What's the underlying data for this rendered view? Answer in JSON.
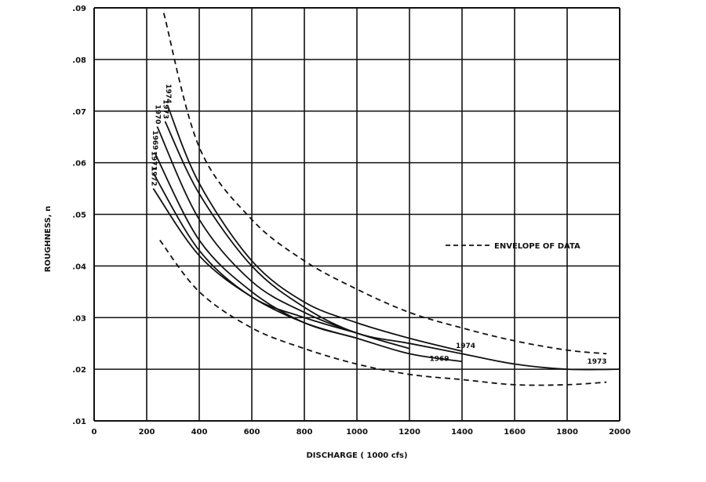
{
  "chart_data": {
    "type": "line",
    "title": "",
    "xlabel": "DISCHARGE ( 1000 cfs)",
    "ylabel": "ROUGHNESS, n",
    "xlim": [
      0,
      2000
    ],
    "ylim": [
      0.01,
      0.09
    ],
    "grid": true,
    "x_ticks": [
      0,
      200,
      400,
      600,
      800,
      1000,
      1200,
      1400,
      1600,
      1800,
      2000
    ],
    "x_tick_labels": [
      "0",
      "200",
      "400",
      "600",
      "800",
      "1000",
      "1200",
      "1400",
      "1600",
      "1800",
      "2000"
    ],
    "y_ticks": [
      0.01,
      0.02,
      0.03,
      0.04,
      0.05,
      0.06,
      0.07,
      0.08,
      0.09
    ],
    "y_tick_labels": [
      ".01",
      ".02",
      ".03",
      ".04",
      ".05",
      ".06",
      ".07",
      ".08",
      ".09"
    ],
    "legend": {
      "position": "right",
      "entries": [
        {
          "label": "ENVELOPE OF DATA",
          "style": "dashed"
        }
      ]
    },
    "series": [
      {
        "name": "1974",
        "style": "solid",
        "points": [
          [
            280,
            0.071
          ],
          [
            400,
            0.056
          ],
          [
            600,
            0.041
          ],
          [
            800,
            0.033
          ],
          [
            1000,
            0.029
          ],
          [
            1200,
            0.026
          ],
          [
            1400,
            0.0235
          ]
        ]
      },
      {
        "name": "1973",
        "style": "solid",
        "points": [
          [
            270,
            0.068
          ],
          [
            400,
            0.054
          ],
          [
            600,
            0.04
          ],
          [
            800,
            0.032
          ],
          [
            1000,
            0.027
          ],
          [
            1200,
            0.025
          ],
          [
            1400,
            0.023
          ],
          [
            1600,
            0.021
          ],
          [
            1800,
            0.02
          ],
          [
            2000,
            0.02
          ]
        ]
      },
      {
        "name": "1970",
        "style": "solid",
        "points": [
          [
            240,
            0.067
          ],
          [
            400,
            0.049
          ],
          [
            600,
            0.037
          ],
          [
            800,
            0.031
          ],
          [
            1000,
            0.027
          ],
          [
            1200,
            0.024
          ]
        ]
      },
      {
        "name": "1969",
        "style": "solid",
        "points": [
          [
            230,
            0.062
          ],
          [
            400,
            0.045
          ],
          [
            600,
            0.035
          ],
          [
            800,
            0.029
          ],
          [
            1000,
            0.026
          ],
          [
            1200,
            0.023
          ],
          [
            1400,
            0.0215
          ]
        ]
      },
      {
        "name": "1971",
        "style": "solid",
        "points": [
          [
            225,
            0.058
          ],
          [
            400,
            0.043
          ],
          [
            600,
            0.034
          ],
          [
            800,
            0.03
          ],
          [
            1000,
            0.027
          ]
        ]
      },
      {
        "name": "1972",
        "style": "solid",
        "points": [
          [
            225,
            0.055
          ],
          [
            400,
            0.042
          ],
          [
            600,
            0.034
          ],
          [
            800,
            0.029
          ],
          [
            1000,
            0.026
          ]
        ]
      },
      {
        "name": "Envelope upper",
        "style": "dashed",
        "points": [
          [
            265,
            0.089
          ],
          [
            400,
            0.063
          ],
          [
            600,
            0.049
          ],
          [
            800,
            0.041
          ],
          [
            1000,
            0.0355
          ],
          [
            1200,
            0.031
          ],
          [
            1400,
            0.028
          ],
          [
            1600,
            0.0255
          ],
          [
            1800,
            0.0237
          ],
          [
            1950,
            0.023
          ]
        ]
      },
      {
        "name": "Envelope lower",
        "style": "dashed",
        "points": [
          [
            250,
            0.045
          ],
          [
            400,
            0.035
          ],
          [
            600,
            0.028
          ],
          [
            800,
            0.024
          ],
          [
            1000,
            0.021
          ],
          [
            1200,
            0.019
          ],
          [
            1400,
            0.018
          ],
          [
            1600,
            0.017
          ],
          [
            1800,
            0.017
          ],
          [
            1950,
            0.0175
          ]
        ]
      }
    ],
    "annotations": [
      {
        "text": "1974",
        "at": [
          1400,
          0.0235
        ]
      },
      {
        "text": "1969",
        "at": [
          1300,
          0.021
        ]
      },
      {
        "text": "1973",
        "at": [
          1900,
          0.0205
        ]
      }
    ]
  }
}
